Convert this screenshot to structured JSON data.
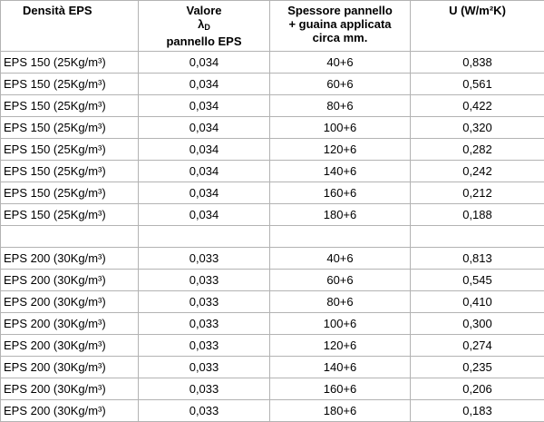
{
  "table": {
    "headers": {
      "col1": "Densità EPS",
      "col2_line1": "Valore",
      "col2_lambda": "λ",
      "col2_sub": "D",
      "col2_line3": "pannello  EPS",
      "col3_line1": "Spessore pannello",
      "col3_line2": "+ guaina applicata",
      "col3_line3": "circa mm.",
      "col4": "U (W/m²K)"
    },
    "groups": [
      {
        "rows": [
          [
            "EPS 150 (25Kg/m³)",
            "0,034",
            "40+6",
            "0,838"
          ],
          [
            "EPS 150 (25Kg/m³)",
            "0,034",
            "60+6",
            "0,561"
          ],
          [
            "EPS 150 (25Kg/m³)",
            "0,034",
            "80+6",
            "0,422"
          ],
          [
            "EPS 150 (25Kg/m³)",
            "0,034",
            "100+6",
            "0,320"
          ],
          [
            "EPS 150 (25Kg/m³)",
            "0,034",
            "120+6",
            "0,282"
          ],
          [
            "EPS 150 (25Kg/m³)",
            "0,034",
            "140+6",
            "0,242"
          ],
          [
            "EPS 150 (25Kg/m³)",
            "0,034",
            "160+6",
            "0,212"
          ],
          [
            "EPS 150 (25Kg/m³)",
            "0,034",
            "180+6",
            "0,188"
          ]
        ]
      },
      {
        "rows": [
          [
            "EPS 200 (30Kg/m³)",
            "0,033",
            "40+6",
            "0,813"
          ],
          [
            "EPS 200 (30Kg/m³)",
            "0,033",
            "60+6",
            "0,545"
          ],
          [
            "EPS 200 (30Kg/m³)",
            "0,033",
            "80+6",
            "0,410"
          ],
          [
            "EPS 200 (30Kg/m³)",
            "0,033",
            "100+6",
            "0,300"
          ],
          [
            "EPS 200 (30Kg/m³)",
            "0,033",
            "120+6",
            "0,274"
          ],
          [
            "EPS 200 (30Kg/m³)",
            "0,033",
            "140+6",
            "0,235"
          ],
          [
            "EPS 200 (30Kg/m³)",
            "0,033",
            "160+6",
            "0,206"
          ],
          [
            "EPS 200 (30Kg/m³)",
            "0,033",
            "180+6",
            "0,183"
          ]
        ]
      }
    ]
  }
}
